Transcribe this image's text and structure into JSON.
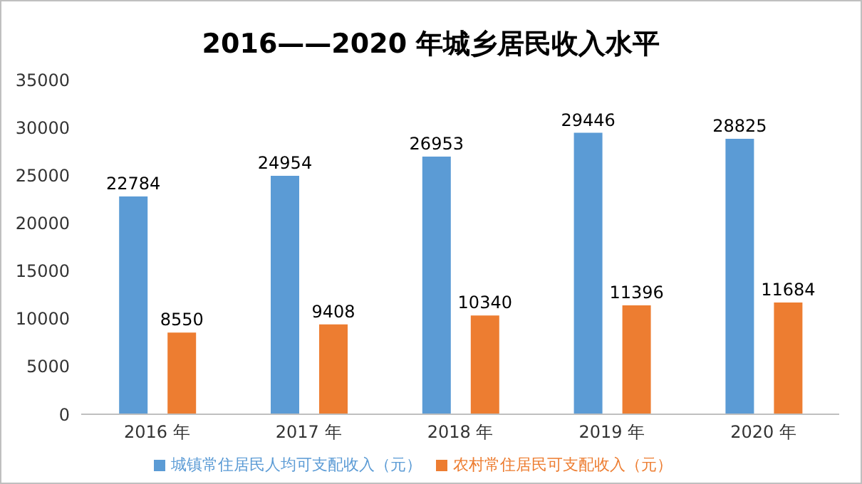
{
  "chart_data": {
    "type": "bar",
    "title": "2016——2020 年城乡居民收入水平",
    "categories": [
      "2016 年",
      "2017 年",
      "2018 年",
      "2019 年",
      "2020 年"
    ],
    "series": [
      {
        "name": "城镇常住居民人均可支配收入（元）",
        "color": "#5b9bd5",
        "values": [
          22784,
          24954,
          26953,
          29446,
          28825
        ]
      },
      {
        "name": "农村常住居民可支配收入（元）",
        "color": "#ed7d31",
        "values": [
          8550,
          9408,
          10340,
          11396,
          11684
        ]
      }
    ],
    "ylim": [
      0,
      35000
    ],
    "yticks": [
      0,
      5000,
      10000,
      15000,
      20000,
      25000,
      30000,
      35000
    ],
    "grid": false,
    "legend": "bottom",
    "data_labels": true
  }
}
